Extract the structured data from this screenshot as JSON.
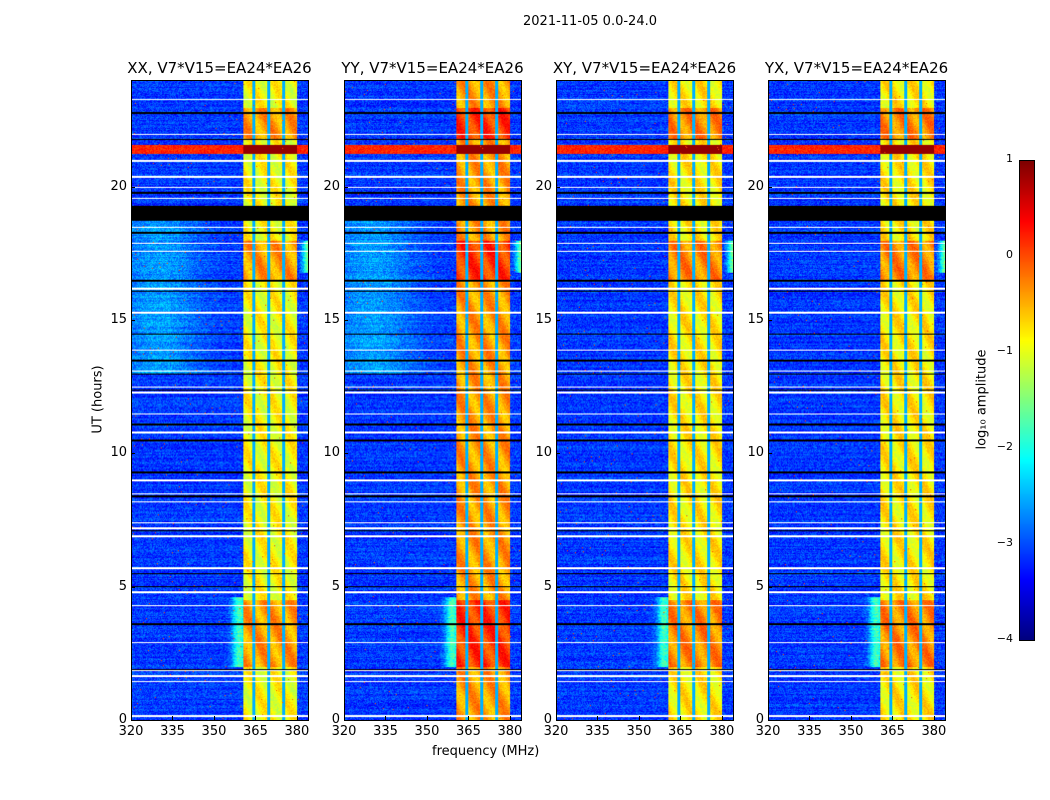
{
  "chart_data": [
    {
      "type": "heatmap",
      "title": "XX, V7*V15=EA24*EA26",
      "xlim": [
        320,
        384
      ],
      "ylim": [
        0,
        24
      ],
      "xticks": [
        "320",
        "335",
        "350",
        "365",
        "380"
      ],
      "yticks": [
        "0",
        "5",
        "10",
        "15",
        "20"
      ],
      "ylabel": "UT (hours)",
      "rfi_level": -0.9
    },
    {
      "type": "heatmap",
      "title": "YY, V7*V15=EA24*EA26",
      "xlim": [
        320,
        384
      ],
      "ylim": [
        0,
        24
      ],
      "xticks": [
        "320",
        "335",
        "350",
        "365",
        "380"
      ],
      "yticks": [
        "0",
        "5",
        "10",
        "15",
        "20"
      ],
      "xlabel": "frequency (MHz)",
      "rfi_level": -0.4
    },
    {
      "type": "heatmap",
      "title": "XY, V7*V15=EA24*EA26",
      "xlim": [
        320,
        384
      ],
      "ylim": [
        0,
        24
      ],
      "xticks": [
        "320",
        "335",
        "350",
        "365",
        "380"
      ],
      "yticks": [
        "0",
        "5",
        "10",
        "15",
        "20"
      ],
      "rfi_level": -0.8
    },
    {
      "type": "heatmap",
      "title": "YX, V7*V15=EA24*EA26",
      "xlim": [
        320,
        384
      ],
      "ylim": [
        0,
        24
      ],
      "xticks": [
        "320",
        "335",
        "350",
        "365",
        "380"
      ],
      "yticks": [
        "0",
        "5",
        "10",
        "15",
        "20"
      ],
      "rfi_level": -0.8
    }
  ],
  "suptitle": "2021-11-05 0.0-24.0",
  "colorbar": {
    "label": "log₁₀ amplitude",
    "range": [
      -4,
      1
    ],
    "ticks": [
      "1",
      "0",
      "−1",
      "−2",
      "−3",
      "−4"
    ],
    "colormap": "jet"
  },
  "features": {
    "background_level": -3.1,
    "rfi_band_mhz": [
      360.4,
      380.2
    ],
    "rfi_gaps_mhz": [
      364.4,
      369.8,
      375.2
    ],
    "black_band_hours": [
      18.75,
      19.3
    ],
    "strong_band_hours": [
      21.25,
      21.6
    ],
    "white_rows_hours": [
      0.15,
      1.45,
      1.65,
      1.85,
      2.9,
      4.3,
      4.8,
      5.7,
      6.9,
      7.2,
      7.4,
      8.2,
      8.5,
      9.0,
      10.8,
      11.5,
      12.3,
      12.5,
      13.1,
      13.9,
      15.3,
      16.2,
      17.6,
      17.9,
      18.5,
      19.6,
      20.0,
      20.4,
      21.0,
      22.0,
      23.3
    ],
    "black_rows_hours": [
      1.9,
      3.6,
      5.0,
      5.5,
      7.1,
      8.4,
      9.3,
      10.5,
      11.1,
      12.4,
      13.0,
      13.5,
      14.5,
      16.1,
      16.5,
      18.3,
      19.8,
      21.8,
      22.8
    ]
  }
}
